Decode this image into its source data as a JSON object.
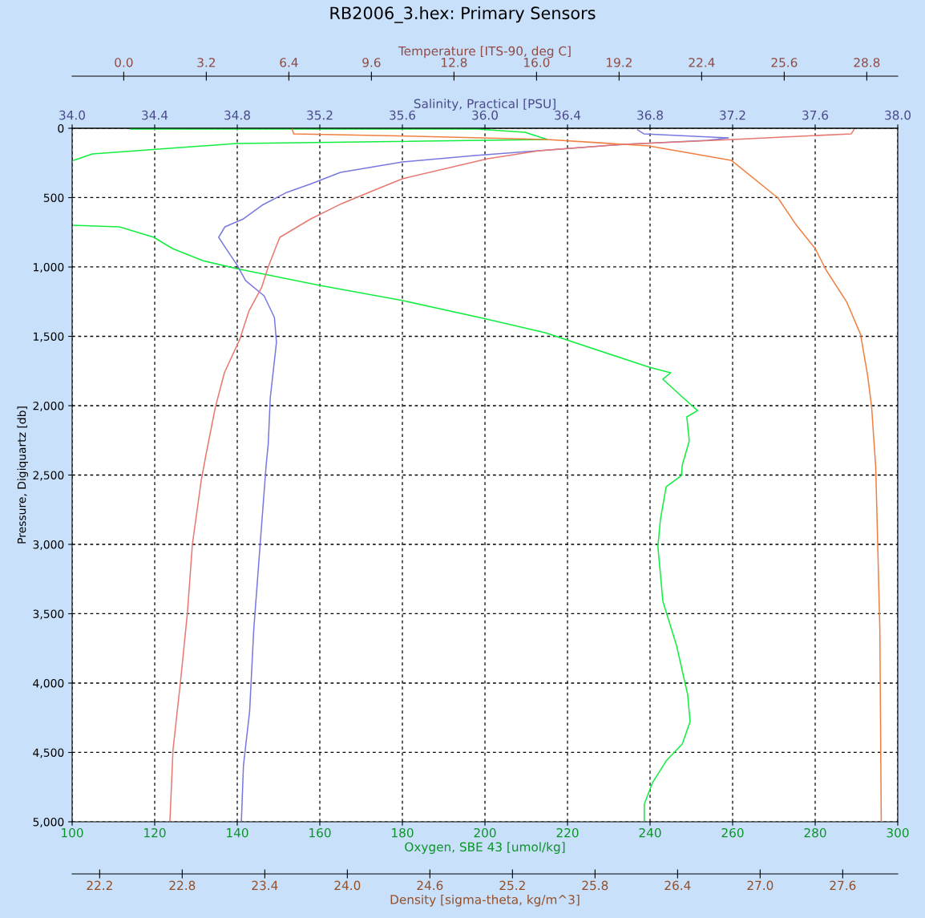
{
  "chart_data": [
    {
      "type": "line",
      "title": "RB2006_3.hex: Primary Sensors",
      "xlabel": "Oxygen, SBE 43 [umol/kg]",
      "x2label": "Salinity, Practical [PSU]",
      "ylabel": "Pressure, Digiquartz [db]",
      "xlim": [
        100,
        300
      ],
      "xticks": [
        100,
        120,
        140,
        160,
        180,
        200,
        220,
        240,
        260,
        280,
        300
      ],
      "x2lim": [
        34,
        38
      ],
      "x2ticks": [
        {
          "value": 34,
          "label": "34.0"
        },
        {
          "value": 34.4,
          "label": "34.4"
        },
        {
          "value": 34.8,
          "label": "34.8"
        },
        {
          "value": 35.2,
          "label": "35.2"
        },
        {
          "value": 35.6,
          "label": "35.6"
        },
        {
          "value": 36,
          "label": "36.0"
        },
        {
          "value": 36.4,
          "label": "36.4"
        },
        {
          "value": 36.8,
          "label": "36.8"
        },
        {
          "value": 37.2,
          "label": "37.2"
        },
        {
          "value": 37.6,
          "label": "37.6"
        },
        {
          "value": 38,
          "label": "38.0"
        }
      ],
      "ylim": [
        5000,
        0
      ],
      "yticks": [
        0,
        {
          "value": 500,
          "label": "500"
        },
        {
          "value": 1000,
          "label": "1,000"
        },
        {
          "value": 1500,
          "label": "1,500"
        },
        {
          "value": 2000,
          "label": "2,000"
        },
        {
          "value": 2500,
          "label": "2,500"
        },
        {
          "value": 3000,
          "label": "3,000"
        },
        {
          "value": 3500,
          "label": "3,500"
        },
        {
          "value": 4000,
          "label": "4,000"
        },
        {
          "value": 4500,
          "label": "4,500"
        },
        {
          "value": 5000,
          "label": "5,000"
        }
      ],
      "grid": true,
      "line_style": "solid",
      "marker": "none",
      "series": [
        {
          "axis": "x2",
          "color": "#7878e0",
          "x": [
            36.74,
            36.77,
            37.18,
            37.08,
            36.68,
            36.26,
            35.95,
            35.6,
            35.3,
            35.16,
            35.04,
            34.92,
            34.83,
            34.74,
            34.71,
            34.74,
            34.8,
            34.84,
            34.93,
            34.98,
            34.99,
            34.96,
            34.95,
            34.94,
            34.91,
            34.88,
            34.86,
            34.83,
            34.82
          ],
          "values": [
            12,
            40,
            69,
            87,
            115,
            162,
            197,
            243,
            318,
            399,
            462,
            555,
            653,
            711,
            786,
            855,
            988,
            1098,
            1208,
            1364,
            1543,
            1942,
            2277,
            2428,
            3017,
            3613,
            4202,
            4595,
            4994
          ]
        },
        {
          "color": "#10ee40",
          "x": [
            114.2,
            198.2,
            209.7,
            215.1,
            139.8,
            104.9,
            100.4,
            null,
            100.4,
            111.5,
            119.8,
            124.3,
            131.6,
            139.8,
            160,
            180.2,
            200.4,
            214.6,
            239.8,
            245,
            243.1,
            248.2,
            251.5,
            248.9,
            249.5,
            247.8,
            247.6,
            243.9,
            242.5,
            241.9,
            243.1,
            246.4,
            249.1,
            249.7,
            247.8,
            243.9,
            240.6,
            238.6,
            238.6
          ],
          "values": [
            5,
            6,
            29,
            81,
            110,
            185,
            231,
            null,
            699,
            711,
            786,
            867,
            954,
            1012,
            1133,
            1243,
            1376,
            1474,
            1723,
            1763,
            1809,
            1948,
            2035,
            2081,
            2254,
            2428,
            2503,
            2584,
            2821,
            3017,
            3410,
            3728,
            4081,
            4277,
            4439,
            4561,
            4717,
            4873,
            4994
          ]
        }
      ]
    },
    {
      "type": "line",
      "tick_labels": "x",
      "xlabel": "Density [sigma-theta, kg/m^3]",
      "x2label": "Temperature [ITS-90, deg C]",
      "xlim": [
        22,
        28
      ],
      "xticks": [
        {
          "value": 22.2,
          "label": "22.2"
        },
        {
          "value": 22.8,
          "label": "22.8"
        },
        {
          "value": 23.4,
          "label": "23.4"
        },
        {
          "value": 24,
          "label": "24.0"
        },
        {
          "value": 24.6,
          "label": "24.6"
        },
        {
          "value": 25.2,
          "label": "25.2"
        },
        {
          "value": 25.8,
          "label": "25.8"
        },
        {
          "value": 26.4,
          "label": "26.4"
        },
        {
          "value": 27,
          "label": "27.0"
        },
        {
          "value": 27.6,
          "label": "27.6"
        }
      ],
      "x2lim": [
        -2,
        30
      ],
      "x2ticks": [
        {
          "value": 0,
          "label": "0.0"
        },
        {
          "value": 3.2,
          "label": "3.2"
        },
        {
          "value": 6.4,
          "label": "6.4"
        },
        {
          "value": 9.6,
          "label": "9.6"
        },
        {
          "value": 12.8,
          "label": "12.8"
        },
        {
          "value": 16,
          "label": "16.0"
        },
        {
          "value": 19.2,
          "label": "19.2"
        },
        {
          "value": 22.4,
          "label": "22.4"
        },
        {
          "value": 25.6,
          "label": "25.6"
        },
        {
          "value": 28.8,
          "label": "28.8"
        }
      ],
      "ylim": [
        5000,
        0
      ],
      "line_style": "solid",
      "marker": "none",
      "series": [
        {
          "axis": "x2",
          "color": "#e87870",
          "x": [
            28.3,
            28.2,
            23.6,
            19.4,
            16.1,
            14.1,
            10.8,
            9.65,
            8.45,
            7.25,
            6.05,
            5.9,
            5.6,
            5.35,
            4.85,
            4.5,
            3.9,
            3.55,
            3.2,
            3.0,
            2.66,
            2.47,
            2.19,
            1.91,
            1.79
          ],
          "values": [
            10,
            40,
            81,
            115,
            162,
            220,
            364,
            451,
            543,
            653,
            786,
            855,
            1000,
            1145,
            1318,
            1520,
            1763,
            2012,
            2341,
            2543,
            3000,
            3491,
            4006,
            4480,
            4994
          ]
        },
        {
          "color": "#f08040",
          "x": [
            23.6,
            23.61,
            24.5,
            25.45,
            26.19,
            26.79,
            27.13,
            27.26,
            27.4,
            27.48,
            27.63,
            27.73,
            27.78,
            27.81,
            27.84,
            27.87,
            27.88
          ],
          "values": [
            9,
            40,
            58,
            81,
            127,
            231,
            503,
            694,
            867,
            1023,
            1254,
            1486,
            1775,
            2006,
            2445,
            3613,
            4994
          ]
        }
      ]
    }
  ]
}
